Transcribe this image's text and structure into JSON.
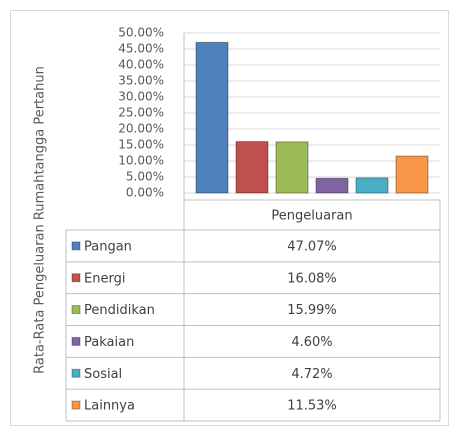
{
  "chart_data": {
    "type": "bar",
    "y_label": "Rata-Rata Pengeluaran Rumahtangga Pertahun",
    "categories": [
      "Pengeluaran"
    ],
    "series": [
      {
        "name": "Pangan",
        "color": "#4f81bd",
        "values": [
          47.07
        ],
        "value_labels": [
          "47.07%"
        ]
      },
      {
        "name": "Energi",
        "color": "#c0504d",
        "values": [
          16.08
        ],
        "value_labels": [
          "16.08%"
        ]
      },
      {
        "name": "Pendidikan",
        "color": "#9bbb59",
        "values": [
          15.99
        ],
        "value_labels": [
          "15.99%"
        ]
      },
      {
        "name": "Pakaian",
        "color": "#8064a2",
        "values": [
          4.6
        ],
        "value_labels": [
          "4.60%"
        ]
      },
      {
        "name": "Sosial",
        "color": "#4bacc6",
        "values": [
          4.72
        ],
        "value_labels": [
          "4.72%"
        ]
      },
      {
        "name": "Lainnya",
        "color": "#f79646",
        "values": [
          11.53
        ],
        "value_labels": [
          "11.53%"
        ]
      }
    ],
    "ylim": [
      0,
      50
    ],
    "yticks": [
      {
        "value": 0,
        "label": "0.00%"
      },
      {
        "value": 5,
        "label": "5.00%"
      },
      {
        "value": 10,
        "label": "10.00%"
      },
      {
        "value": 15,
        "label": "15.00%"
      },
      {
        "value": 20,
        "label": "20.00%"
      },
      {
        "value": 25,
        "label": "25.00%"
      },
      {
        "value": 30,
        "label": "30.00%"
      },
      {
        "value": 35,
        "label": "35.00%"
      },
      {
        "value": 40,
        "label": "40.00%"
      },
      {
        "value": 45,
        "label": "45.00%"
      },
      {
        "value": 50,
        "label": "50.00%"
      }
    ],
    "grid": true,
    "data_table": true
  }
}
